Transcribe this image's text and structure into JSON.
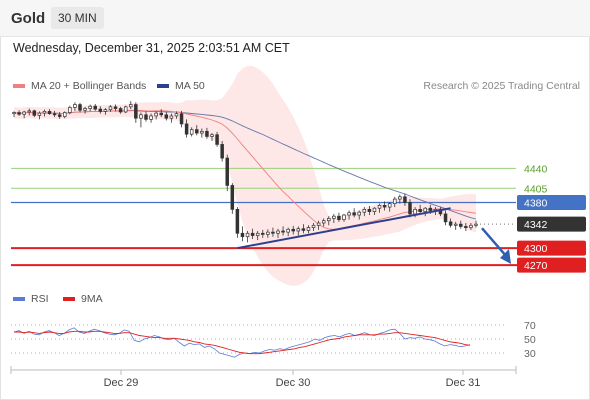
{
  "header": {
    "instrument": "Gold",
    "timeframe": "30 MIN",
    "timestamp": "Wednesday, December 31, 2025 2:03:51 AM CET"
  },
  "legend": {
    "ma20_label": "MA 20 + Bollinger Bands",
    "ma50_label": "MA 50",
    "credit": "Research © 2025 Trading Central",
    "rsi_label": "RSI",
    "rsi_ma_label": "9MA"
  },
  "colors": {
    "candle": "#333333",
    "ma20": "#f08080",
    "bollinger": "#fde3e3",
    "ma50": "#6677aa",
    "trendline": "#2d3f8f",
    "resistance_green": "#9ad07a",
    "pivot_blue": "#4472c4",
    "support_red": "#e02020",
    "current_price_bg": "#333333",
    "rsi_line": "#5b7bd5",
    "rsi_ma": "#e02020"
  },
  "chart_data": {
    "type": "candlestick",
    "x_labels": [
      "Dec 29",
      "Dec 30",
      "Dec 31"
    ],
    "ylim": [
      4258,
      4560
    ],
    "levels": [
      {
        "value": 4440,
        "label": "4440",
        "type": "resistance"
      },
      {
        "value": 4405,
        "label": "4405",
        "type": "resistance"
      },
      {
        "value": 4380,
        "label": "4380",
        "type": "pivot"
      },
      {
        "value": 4342,
        "label": "4342",
        "type": "current"
      },
      {
        "value": 4300,
        "label": "4300",
        "type": "support"
      },
      {
        "value": 4270,
        "label": "4270",
        "type": "support"
      }
    ],
    "candles": [
      [
        4536,
        4540,
        4530,
        4538
      ],
      [
        4538,
        4542,
        4532,
        4535
      ],
      [
        4535,
        4541,
        4528,
        4539
      ],
      [
        4539,
        4545,
        4533,
        4541
      ],
      [
        4541,
        4543,
        4530,
        4533
      ],
      [
        4533,
        4540,
        4526,
        4537
      ],
      [
        4537,
        4543,
        4531,
        4540
      ],
      [
        4540,
        4544,
        4534,
        4536
      ],
      [
        4536,
        4541,
        4530,
        4534
      ],
      [
        4534,
        4539,
        4527,
        4531
      ],
      [
        4531,
        4540,
        4528,
        4538
      ],
      [
        4538,
        4550,
        4535,
        4547
      ],
      [
        4547,
        4556,
        4541,
        4552
      ],
      [
        4552,
        4555,
        4538,
        4542
      ],
      [
        4542,
        4548,
        4536,
        4545
      ],
      [
        4545,
        4552,
        4540,
        4549
      ],
      [
        4549,
        4553,
        4541,
        4544
      ],
      [
        4544,
        4549,
        4536,
        4540
      ],
      [
        4540,
        4546,
        4534,
        4543
      ],
      [
        4543,
        4551,
        4539,
        4548
      ],
      [
        4548,
        4552,
        4540,
        4545
      ],
      [
        4545,
        4548,
        4536,
        4539
      ],
      [
        4539,
        4550,
        4537,
        4548
      ],
      [
        4548,
        4558,
        4544,
        4552
      ],
      [
        4552,
        4556,
        4520,
        4528
      ],
      [
        4528,
        4538,
        4512,
        4534
      ],
      [
        4534,
        4540,
        4522,
        4526
      ],
      [
        4526,
        4536,
        4520,
        4532
      ],
      [
        4532,
        4540,
        4526,
        4537
      ],
      [
        4537,
        4544,
        4530,
        4534
      ],
      [
        4534,
        4539,
        4524,
        4528
      ],
      [
        4528,
        4536,
        4520,
        4532
      ],
      [
        4532,
        4540,
        4527,
        4536
      ],
      [
        4536,
        4541,
        4512,
        4518
      ],
      [
        4518,
        4526,
        4494,
        4500
      ],
      [
        4500,
        4512,
        4496,
        4508
      ],
      [
        4508,
        4516,
        4498,
        4502
      ],
      [
        4502,
        4510,
        4494,
        4505
      ],
      [
        4505,
        4511,
        4492,
        4496
      ],
      [
        4496,
        4502,
        4488,
        4499
      ],
      [
        4499,
        4504,
        4478,
        4482
      ],
      [
        4482,
        4488,
        4452,
        4458
      ],
      [
        4458,
        4464,
        4400,
        4410
      ],
      [
        4410,
        4414,
        4360,
        4368
      ],
      [
        4368,
        4372,
        4318,
        4326
      ],
      [
        4326,
        4338,
        4312,
        4320
      ],
      [
        4320,
        4330,
        4310,
        4326
      ],
      [
        4326,
        4334,
        4316,
        4322
      ],
      [
        4322,
        4330,
        4314,
        4326
      ],
      [
        4326,
        4332,
        4318,
        4324
      ],
      [
        4324,
        4333,
        4318,
        4328
      ],
      [
        4328,
        4336,
        4320,
        4326
      ],
      [
        4326,
        4334,
        4318,
        4330
      ],
      [
        4330,
        4338,
        4322,
        4328
      ],
      [
        4328,
        4336,
        4321,
        4333
      ],
      [
        4333,
        4339,
        4324,
        4330
      ],
      [
        4330,
        4338,
        4322,
        4334
      ],
      [
        4334,
        4342,
        4326,
        4331
      ],
      [
        4331,
        4340,
        4326,
        4336
      ],
      [
        4336,
        4344,
        4330,
        4340
      ],
      [
        4340,
        4348,
        4332,
        4344
      ],
      [
        4344,
        4352,
        4338,
        4348
      ],
      [
        4348,
        4356,
        4340,
        4352
      ],
      [
        4352,
        4360,
        4344,
        4356
      ],
      [
        4356,
        4362,
        4346,
        4350
      ],
      [
        4350,
        4360,
        4346,
        4358
      ],
      [
        4358,
        4366,
        4350,
        4362
      ],
      [
        4362,
        4370,
        4354,
        4358
      ],
      [
        4358,
        4366,
        4350,
        4363
      ],
      [
        4363,
        4372,
        4356,
        4368
      ],
      [
        4368,
        4374,
        4358,
        4364
      ],
      [
        4364,
        4372,
        4358,
        4370
      ],
      [
        4370,
        4378,
        4362,
        4375
      ],
      [
        4375,
        4382,
        4366,
        4372
      ],
      [
        4372,
        4380,
        4364,
        4378
      ],
      [
        4378,
        4390,
        4372,
        4386
      ],
      [
        4386,
        4394,
        4378,
        4390
      ],
      [
        4390,
        4396,
        4374,
        4380
      ],
      [
        4380,
        4386,
        4354,
        4360
      ],
      [
        4360,
        4372,
        4354,
        4368
      ],
      [
        4368,
        4376,
        4362,
        4364
      ],
      [
        4364,
        4372,
        4356,
        4370
      ],
      [
        4370,
        4376,
        4360,
        4366
      ],
      [
        4366,
        4372,
        4358,
        4368
      ],
      [
        4368,
        4372,
        4356,
        4360
      ],
      [
        4360,
        4366,
        4340,
        4346
      ],
      [
        4346,
        4352,
        4336,
        4340
      ],
      [
        4340,
        4346,
        4332,
        4342
      ],
      [
        4342,
        4348,
        4334,
        4338
      ],
      [
        4338,
        4344,
        4330,
        4336
      ],
      [
        4336,
        4344,
        4332,
        4340
      ],
      [
        4340,
        4348,
        4336,
        4342
      ]
    ],
    "rsi": [
      60,
      62,
      58,
      61,
      57,
      56,
      60,
      62,
      59,
      55,
      58,
      63,
      66,
      60,
      58,
      61,
      64,
      62,
      59,
      57,
      56,
      58,
      63,
      61,
      48,
      46,
      50,
      52,
      55,
      53,
      50,
      49,
      51,
      45,
      40,
      44,
      42,
      43,
      38,
      40,
      36,
      30,
      28,
      26,
      24,
      28,
      30,
      29,
      31,
      30,
      33,
      35,
      34,
      36,
      35,
      38,
      40,
      42,
      44,
      46,
      50,
      48,
      52,
      54,
      55,
      53,
      56,
      58,
      55,
      57,
      59,
      56,
      55,
      58,
      60,
      63,
      64,
      58,
      50,
      52,
      51,
      53,
      50,
      49,
      47,
      43,
      40,
      42,
      41,
      39,
      40,
      42
    ],
    "rsi_ma": [
      60,
      60,
      59,
      60,
      59,
      58,
      59,
      60,
      59,
      58,
      58,
      60,
      61,
      61,
      60,
      60,
      61,
      61,
      60,
      59,
      58,
      58,
      59,
      59,
      57,
      55,
      54,
      53,
      52,
      52,
      51,
      51,
      51,
      50,
      49,
      48,
      46,
      45,
      43,
      42,
      41,
      39,
      37,
      35,
      33,
      31,
      30,
      29,
      29,
      29,
      30,
      31,
      32,
      33,
      34,
      35,
      36,
      38,
      39,
      41,
      43,
      45,
      47,
      49,
      50,
      51,
      53,
      54,
      55,
      56,
      56,
      56,
      56,
      57,
      57,
      58,
      59,
      59,
      58,
      57,
      56,
      55,
      54,
      53,
      52,
      50,
      48,
      46,
      45,
      44,
      42,
      41
    ],
    "rsi_levels": [
      70,
      50,
      30
    ]
  }
}
